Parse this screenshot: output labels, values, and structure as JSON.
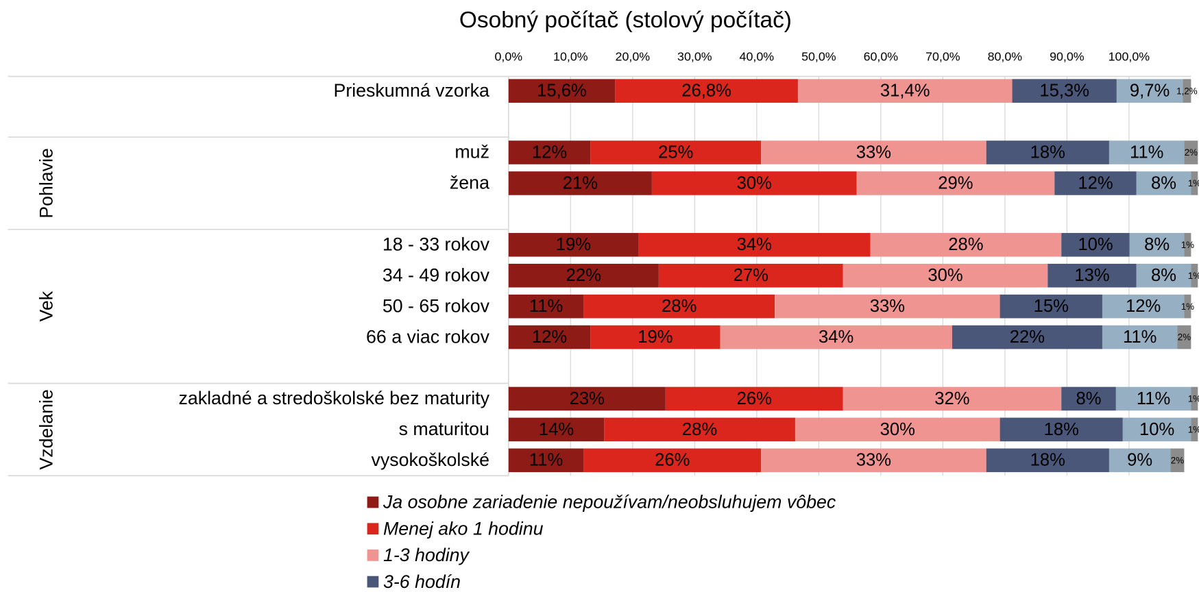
{
  "chart_data": {
    "type": "bar",
    "orientation": "horizontal",
    "stacked": true,
    "title": "Osobný počítač (stolový počítač)",
    "categories": [
      "Prieskumná vzorka",
      "muž",
      "žena",
      "18 - 33 rokov",
      "34 - 49 rokov",
      "50 - 65 rokov",
      "66 a viac rokov",
      "zakladné a stredoškolské bez maturity",
      "s maturitou",
      "vysokoškolské"
    ],
    "category_groups": [
      null,
      "Pohlavie",
      "Pohlavie",
      "Vek",
      "Vek",
      "Vek",
      "Vek",
      "Vzdelanie",
      "Vzdelanie",
      "Vzdelanie"
    ],
    "series": [
      {
        "name": "Ja osobne zariadenie nepoužívam/neobsluhujem vôbec",
        "color": "#8f1b17",
        "values": [
          15.6,
          12,
          21,
          19,
          22,
          11,
          12,
          23,
          14,
          11
        ],
        "value_labels": [
          "15,6%",
          "12%",
          "21%",
          "19%",
          "22%",
          "11%",
          "12%",
          "23%",
          "14%",
          "11%"
        ]
      },
      {
        "name": "Menej ako 1 hodinu",
        "color": "#da261d",
        "values": [
          26.8,
          25,
          30,
          34,
          27,
          28,
          19,
          26,
          28,
          26
        ],
        "value_labels": [
          "26,8%",
          "25%",
          "30%",
          "34%",
          "27%",
          "28%",
          "19%",
          "26%",
          "28%",
          "26%"
        ]
      },
      {
        "name": "1-3 hodiny",
        "color": "#ef9490",
        "values": [
          31.4,
          33,
          29,
          28,
          30,
          33,
          34,
          32,
          30,
          33
        ],
        "value_labels": [
          "31,4%",
          "33%",
          "29%",
          "28%",
          "30%",
          "33%",
          "34%",
          "32%",
          "30%",
          "33%"
        ]
      },
      {
        "name": "3-6 hodín",
        "color": "#4a5779",
        "values": [
          15.3,
          18,
          12,
          10,
          13,
          15,
          22,
          8,
          18,
          18
        ],
        "value_labels": [
          "15,3%",
          "18%",
          "12%",
          "10%",
          "13%",
          "15%",
          "22%",
          "8%",
          "18%",
          "18%"
        ]
      },
      {
        "color": "#97afc2",
        "values": [
          9.7,
          11,
          8,
          8,
          8,
          12,
          11,
          11,
          10,
          9
        ],
        "value_labels": [
          "9,7%",
          "11%",
          "8%",
          "8%",
          "8%",
          "12%",
          "11%",
          "11%",
          "10%",
          "9%"
        ]
      },
      {
        "color": "#8c8c8c",
        "values": [
          1.2,
          2,
          1,
          1,
          1,
          1,
          2,
          1,
          1,
          2
        ],
        "value_labels": [
          "1,2%",
          "2%",
          "1%",
          "1%",
          "1%",
          "1%",
          "2%",
          "1%",
          "1%",
          "2%"
        ]
      }
    ],
    "xlim": [
      0,
      100
    ],
    "x2lim": [
      0,
      110
    ],
    "x2ticks": [
      {
        "value": 0,
        "label": "0,0%"
      },
      {
        "value": 10,
        "label": "10,0%"
      },
      {
        "value": 20,
        "label": "20,0%"
      },
      {
        "value": 30,
        "label": "30,0%"
      },
      {
        "value": 40,
        "label": "40,0%"
      },
      {
        "value": 50,
        "label": "50,0%"
      },
      {
        "value": 60,
        "label": "60,0%"
      },
      {
        "value": 70,
        "label": "70,0%"
      },
      {
        "value": 80,
        "label": "80,0%"
      },
      {
        "value": 90,
        "label": "90,0%"
      },
      {
        "value": 100,
        "label": "100,0%"
      }
    ],
    "grid": true
  }
}
